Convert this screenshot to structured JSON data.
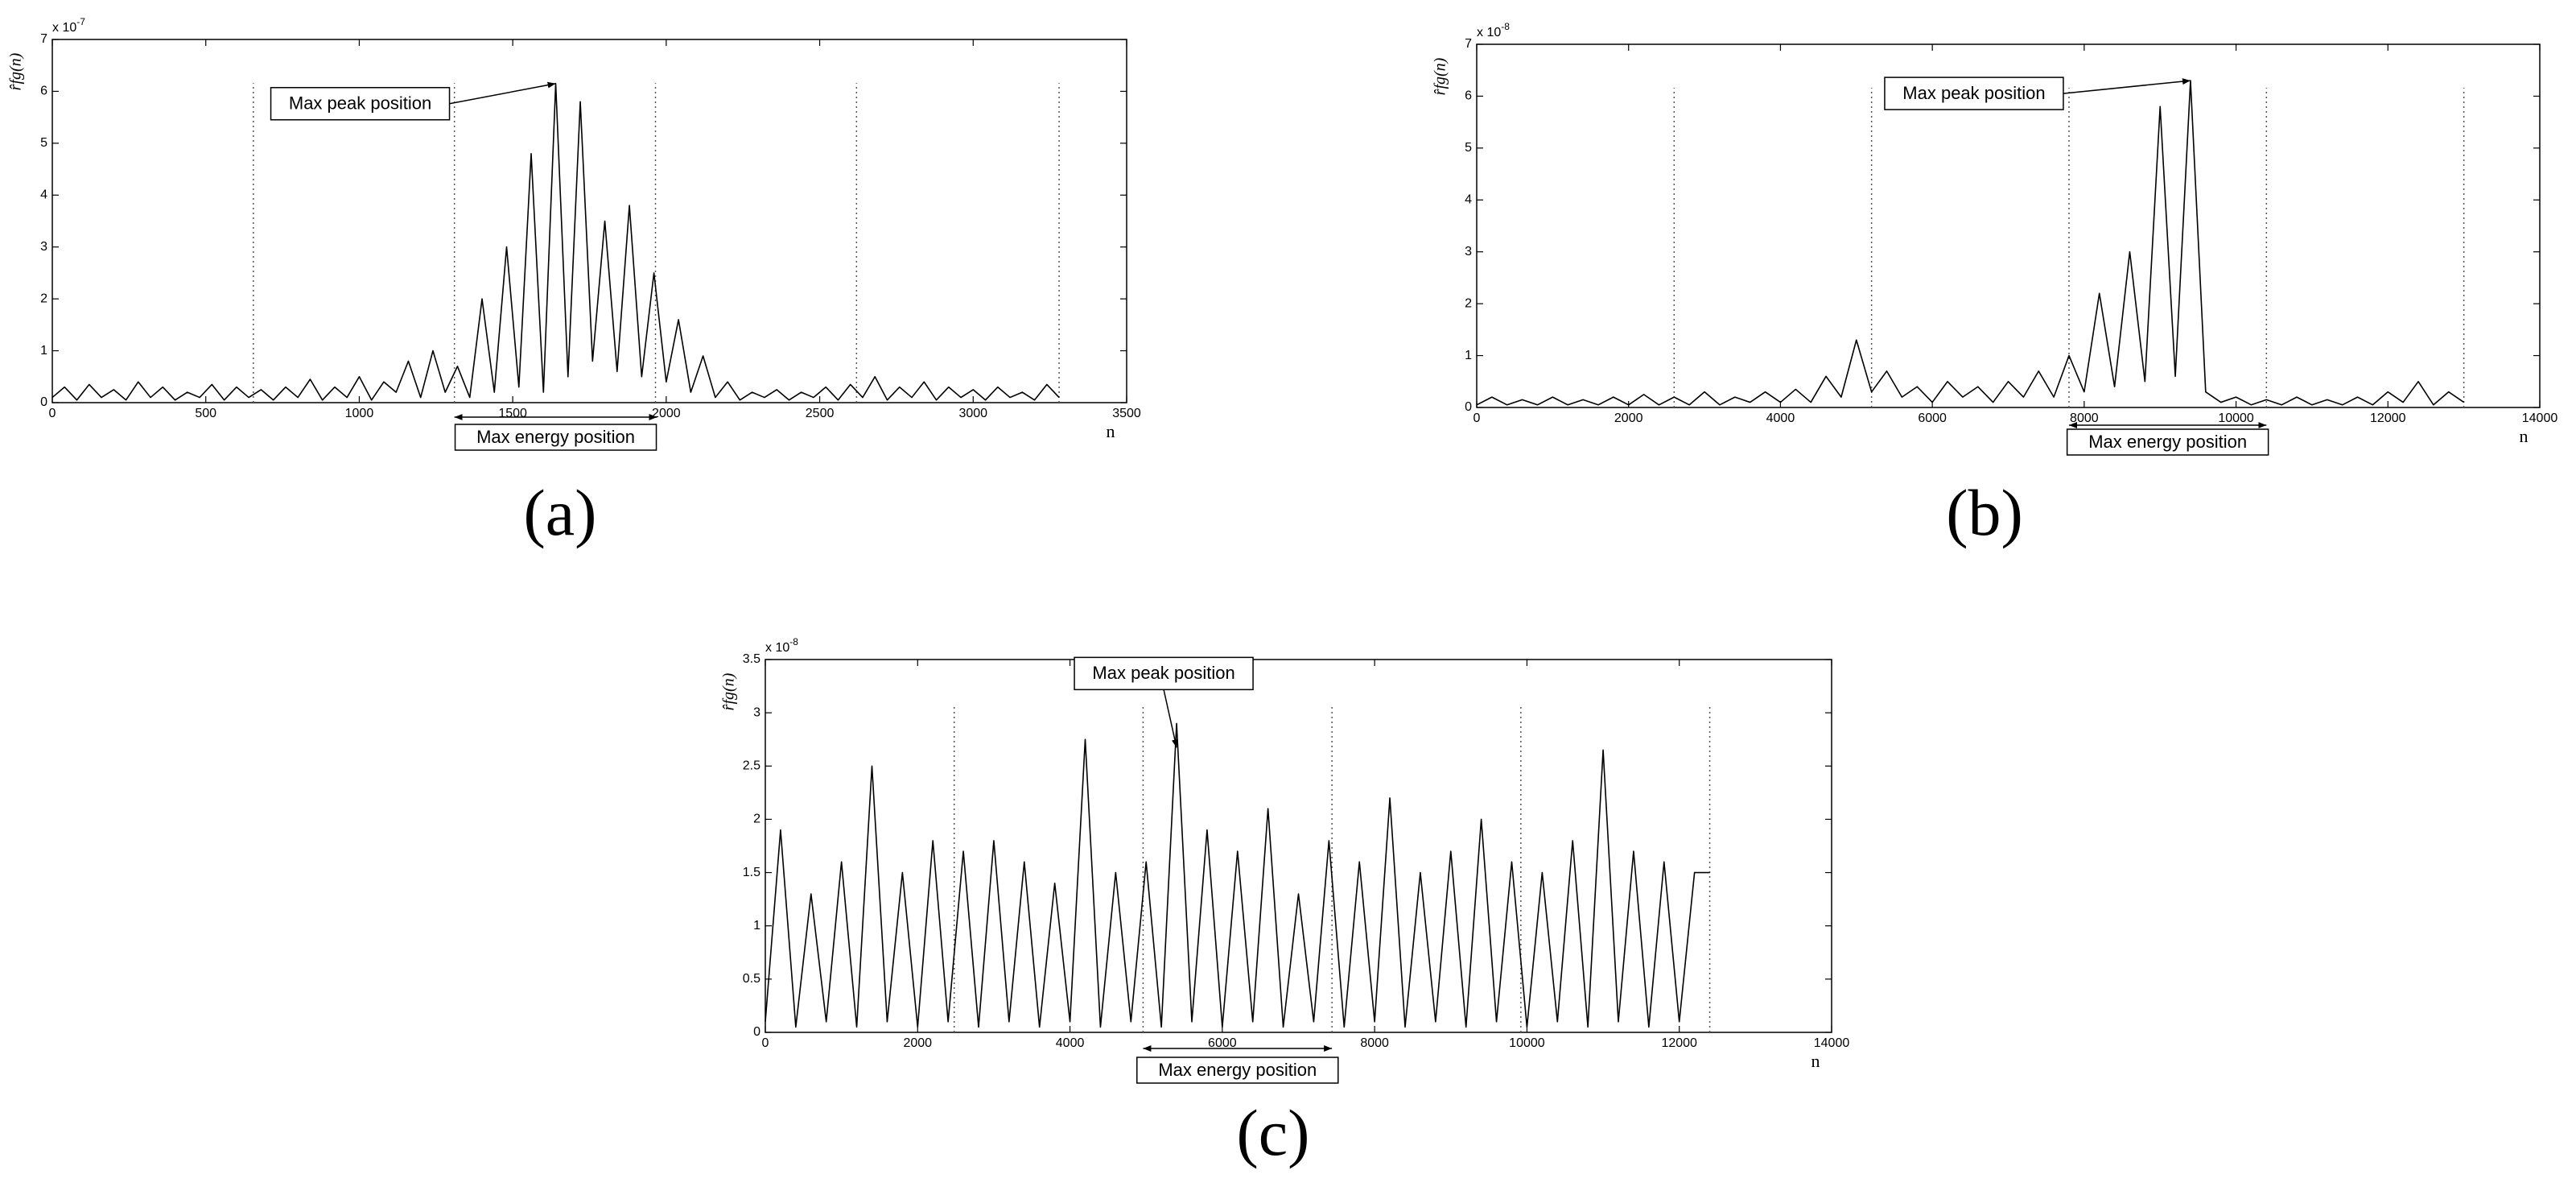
{
  "chart_data": [
    {
      "type": "line",
      "panel_label": "(a)",
      "x_label": "n",
      "y_label": "r̂fg(n)",
      "y_exponent": {
        "base": "x 10",
        "power": "-7"
      },
      "xlim": [
        0,
        3500
      ],
      "xticks": [
        0,
        500,
        1000,
        1500,
        2000,
        2500,
        3000,
        3500
      ],
      "ylim": [
        0,
        7
      ],
      "yticks": [
        0,
        1,
        2,
        3,
        4,
        5,
        6,
        7
      ],
      "marker_lines": [
        655,
        1310,
        1965,
        2620,
        3280
      ],
      "x": [
        0,
        40,
        80,
        120,
        160,
        200,
        240,
        280,
        320,
        360,
        400,
        440,
        480,
        520,
        560,
        600,
        640,
        680,
        720,
        760,
        800,
        840,
        880,
        920,
        960,
        1000,
        1040,
        1080,
        1120,
        1160,
        1200,
        1240,
        1280,
        1320,
        1360,
        1400,
        1440,
        1480,
        1520,
        1560,
        1600,
        1640,
        1680,
        1720,
        1760,
        1800,
        1840,
        1880,
        1920,
        1960,
        2000,
        2040,
        2080,
        2120,
        2160,
        2200,
        2240,
        2280,
        2320,
        2360,
        2400,
        2440,
        2480,
        2520,
        2560,
        2600,
        2640,
        2680,
        2720,
        2760,
        2800,
        2840,
        2880,
        2920,
        2960,
        3000,
        3040,
        3080,
        3120,
        3160,
        3200,
        3240,
        3280
      ],
      "series": [
        {
          "color": "#000000",
          "values": [
            0.1,
            0.3,
            0.05,
            0.35,
            0.1,
            0.25,
            0.05,
            0.4,
            0.1,
            0.3,
            0.05,
            0.2,
            0.1,
            0.35,
            0.05,
            0.3,
            0.1,
            0.25,
            0.05,
            0.3,
            0.1,
            0.45,
            0.05,
            0.3,
            0.1,
            0.5,
            0.05,
            0.4,
            0.2,
            0.8,
            0.1,
            1.0,
            0.2,
            0.7,
            0.1,
            2.0,
            0.2,
            3.0,
            0.3,
            4.8,
            0.2,
            6.15,
            0.5,
            5.8,
            0.8,
            3.5,
            0.6,
            3.8,
            0.5,
            2.5,
            0.4,
            1.6,
            0.2,
            0.9,
            0.1,
            0.4,
            0.05,
            0.2,
            0.1,
            0.25,
            0.05,
            0.2,
            0.1,
            0.3,
            0.05,
            0.35,
            0.1,
            0.5,
            0.05,
            0.3,
            0.1,
            0.4,
            0.05,
            0.3,
            0.1,
            0.25,
            0.05,
            0.3,
            0.1,
            0.2,
            0.05,
            0.35,
            0.1
          ]
        }
      ],
      "annotations": [
        {
          "text": "Max peak position",
          "x": 1640,
          "y": 6.15
        },
        {
          "text": "Max energy position",
          "x_range": [
            1310,
            1970
          ]
        }
      ]
    },
    {
      "type": "line",
      "panel_label": "(b)",
      "x_label": "n",
      "y_label": "r̂fg(n)",
      "y_exponent": {
        "base": "x 10",
        "power": "-8"
      },
      "xlim": [
        0,
        14000
      ],
      "xticks": [
        0,
        2000,
        4000,
        6000,
        8000,
        10000,
        12000,
        14000
      ],
      "ylim": [
        0,
        7
      ],
      "yticks": [
        0,
        1,
        2,
        3,
        4,
        5,
        6,
        7
      ],
      "marker_lines": [
        2600,
        5200,
        7800,
        10400,
        13000
      ],
      "x": [
        0,
        200,
        400,
        600,
        800,
        1000,
        1200,
        1400,
        1600,
        1800,
        2000,
        2200,
        2400,
        2600,
        2800,
        3000,
        3200,
        3400,
        3600,
        3800,
        4000,
        4200,
        4400,
        4600,
        4800,
        5000,
        5200,
        5400,
        5600,
        5800,
        6000,
        6200,
        6400,
        6600,
        6800,
        7000,
        7200,
        7400,
        7600,
        7800,
        8000,
        8200,
        8400,
        8600,
        8800,
        9000,
        9200,
        9400,
        9600,
        9800,
        10000,
        10200,
        10400,
        10600,
        10800,
        11000,
        11200,
        11400,
        11600,
        11800,
        12000,
        12200,
        12400,
        12600,
        12800,
        13000
      ],
      "series": [
        {
          "color": "#000000",
          "values": [
            0.05,
            0.2,
            0.05,
            0.15,
            0.05,
            0.2,
            0.05,
            0.15,
            0.05,
            0.2,
            0.05,
            0.25,
            0.05,
            0.2,
            0.05,
            0.3,
            0.05,
            0.2,
            0.1,
            0.3,
            0.1,
            0.35,
            0.1,
            0.6,
            0.2,
            1.3,
            0.3,
            0.7,
            0.2,
            0.4,
            0.1,
            0.5,
            0.2,
            0.4,
            0.1,
            0.5,
            0.2,
            0.7,
            0.2,
            1.0,
            0.3,
            2.2,
            0.4,
            3.0,
            0.5,
            5.8,
            0.6,
            6.3,
            0.3,
            0.1,
            0.2,
            0.05,
            0.15,
            0.05,
            0.2,
            0.05,
            0.15,
            0.05,
            0.2,
            0.05,
            0.3,
            0.1,
            0.5,
            0.05,
            0.3,
            0.1
          ]
        }
      ],
      "annotations": [
        {
          "text": "Max peak position",
          "x": 9400,
          "y": 6.3
        },
        {
          "text": "Max energy position",
          "x_range": [
            7800,
            10400
          ]
        }
      ]
    },
    {
      "type": "line",
      "panel_label": "(c)",
      "x_label": "n",
      "y_label": "r̂fg(n)",
      "y_exponent": {
        "base": "x 10",
        "power": "-8"
      },
      "xlim": [
        0,
        14000
      ],
      "xticks": [
        0,
        2000,
        4000,
        6000,
        8000,
        10000,
        12000,
        14000
      ],
      "ylim": [
        0,
        3.5
      ],
      "yticks": [
        0,
        0.5,
        1,
        1.5,
        2,
        2.5,
        3,
        3.5
      ],
      "marker_lines": [
        2480,
        4960,
        7440,
        9920,
        12400
      ],
      "x": [
        0,
        200,
        400,
        600,
        800,
        1000,
        1200,
        1400,
        1600,
        1800,
        2000,
        2200,
        2400,
        2600,
        2800,
        3000,
        3200,
        3400,
        3600,
        3800,
        4000,
        4200,
        4400,
        4600,
        4800,
        5000,
        5200,
        5400,
        5600,
        5800,
        6000,
        6200,
        6400,
        6600,
        6800,
        7000,
        7200,
        7400,
        7600,
        7800,
        8000,
        8200,
        8400,
        8600,
        8800,
        9000,
        9200,
        9400,
        9600,
        9800,
        10000,
        10200,
        10400,
        10600,
        10800,
        11000,
        11200,
        11400,
        11600,
        11800,
        12000,
        12200,
        12400
      ],
      "series": [
        {
          "color": "#000000",
          "values": [
            0.1,
            1.9,
            0.05,
            1.3,
            0.1,
            1.6,
            0.05,
            2.5,
            0.1,
            1.5,
            0.05,
            1.8,
            0.1,
            1.7,
            0.05,
            1.8,
            0.1,
            1.6,
            0.05,
            1.4,
            0.1,
            2.75,
            0.05,
            1.5,
            0.1,
            1.6,
            0.05,
            2.9,
            0.1,
            1.9,
            0.05,
            1.7,
            0.1,
            2.1,
            0.05,
            1.3,
            0.1,
            1.8,
            0.05,
            1.6,
            0.1,
            2.2,
            0.05,
            1.5,
            0.1,
            1.7,
            0.05,
            2.0,
            0.1,
            1.6,
            0.05,
            1.5,
            0.1,
            1.8,
            0.05,
            2.65,
            0.1,
            1.7,
            0.05,
            1.6,
            0.1,
            1.5,
            1.5
          ]
        }
      ],
      "annotations": [
        {
          "text": "Max peak position",
          "x": 5400,
          "y": 2.9
        },
        {
          "text": "Max energy position",
          "x_range": [
            4960,
            7440
          ]
        }
      ]
    }
  ]
}
